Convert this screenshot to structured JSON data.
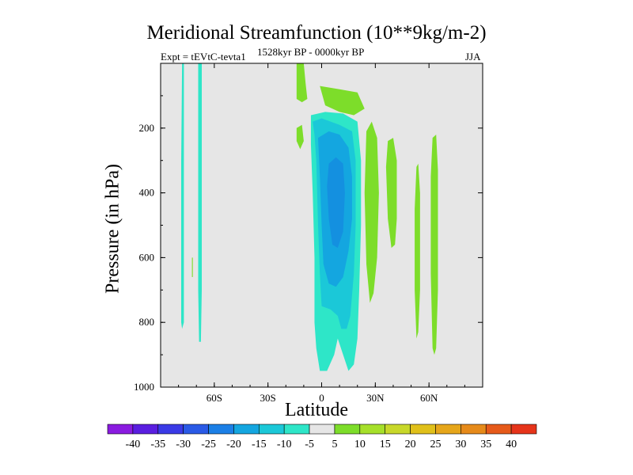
{
  "title": "Meridional Streamfunction (10**9kg/m-2)",
  "subtitle": "1528kyr BP - 0000kyr BP",
  "expt_label": "Expt = tEVtC-tevta1",
  "season": "JJA",
  "colors": {
    "background": "#e6e6e6",
    "neg5": "#2ee6c8",
    "neg10": "#1bc8d8",
    "neg15": "#14a6e0",
    "neg20": "#1490e0",
    "pos5": "#7ddd2a"
  },
  "chart_data": {
    "type": "contour",
    "title": "Meridional Streamfunction (10**9kg/m-2)",
    "xlabel": "Latitude",
    "ylabel": "Pressure (in hPa)",
    "xlim": [
      -90,
      90
    ],
    "ylim": [
      1000,
      0
    ],
    "xticks": [
      {
        "value": -60,
        "label": "60S"
      },
      {
        "value": -30,
        "label": "30S"
      },
      {
        "value": 0,
        "label": "0"
      },
      {
        "value": 30,
        "label": "30N"
      },
      {
        "value": 60,
        "label": "60N"
      }
    ],
    "yticks": [
      {
        "value": 200,
        "label": "200"
      },
      {
        "value": 400,
        "label": "400"
      },
      {
        "value": 600,
        "label": "600"
      },
      {
        "value": 800,
        "label": "800"
      },
      {
        "value": 1000,
        "label": "1000"
      }
    ],
    "colorbar": {
      "levels": [
        -40,
        -35,
        -30,
        -25,
        -20,
        -15,
        -10,
        -5,
        5,
        10,
        15,
        20,
        25,
        30,
        35,
        40
      ],
      "colors": [
        "#8a1be0",
        "#5a1ee0",
        "#3a3ae6",
        "#2a5ae6",
        "#1b7fe6",
        "#14a6e0",
        "#1bc8d8",
        "#2ee6c8",
        "#e6e6e6",
        "#7ddd2a",
        "#a6e02a",
        "#c8d82a",
        "#e0c01a",
        "#e6a61a",
        "#e68a1a",
        "#e65a1a",
        "#e6341a"
      ]
    },
    "regions": [
      {
        "name": "band-70S-a",
        "level": "neg5",
        "points": [
          [
            -78,
            0
          ],
          [
            -77,
            0
          ],
          [
            -77,
            800
          ],
          [
            -78,
            820
          ],
          [
            -78.5,
            800
          ],
          [
            -78.5,
            300
          ]
        ]
      },
      {
        "name": "band-70S-b",
        "level": "neg5",
        "points": [
          [
            -69,
            0
          ],
          [
            -67,
            0
          ],
          [
            -67,
            700
          ],
          [
            -67.5,
            860
          ],
          [
            -68.5,
            860
          ],
          [
            -69,
            700
          ]
        ]
      },
      {
        "name": "spot-72S",
        "level": "pos5",
        "points": [
          [
            -72.5,
            600
          ],
          [
            -72,
            600
          ],
          [
            -72,
            660
          ],
          [
            -72.5,
            660
          ]
        ]
      },
      {
        "name": "upper-15S",
        "level": "pos5",
        "points": [
          [
            -14,
            0
          ],
          [
            -10,
            0
          ],
          [
            -9,
            60
          ],
          [
            -8,
            110
          ],
          [
            -11,
            120
          ],
          [
            -14,
            110
          ],
          [
            -14,
            60
          ]
        ]
      },
      {
        "name": "upper-7N",
        "level": "pos5",
        "points": [
          [
            -1,
            70
          ],
          [
            10,
            80
          ],
          [
            20,
            90
          ],
          [
            24,
            140
          ],
          [
            18,
            160
          ],
          [
            10,
            150
          ],
          [
            2,
            130
          ]
        ]
      },
      {
        "name": "upper-left-blob",
        "level": "pos5",
        "points": [
          [
            -14,
            200
          ],
          [
            -11,
            190
          ],
          [
            -10,
            240
          ],
          [
            -12,
            265
          ],
          [
            -14,
            240
          ]
        ]
      },
      {
        "name": "cell-outer",
        "level": "neg5",
        "points": [
          [
            -6,
            160
          ],
          [
            2,
            150
          ],
          [
            12,
            155
          ],
          [
            20,
            180
          ],
          [
            22,
            300
          ],
          [
            22,
            500
          ],
          [
            21,
            700
          ],
          [
            20,
            850
          ],
          [
            18,
            930
          ],
          [
            15,
            950
          ],
          [
            12,
            900
          ],
          [
            9,
            850
          ],
          [
            7,
            900
          ],
          [
            3,
            950
          ],
          [
            -1,
            950
          ],
          [
            -3,
            880
          ],
          [
            -4,
            800
          ],
          [
            -4,
            600
          ],
          [
            -5,
            400
          ],
          [
            -6,
            250
          ]
        ]
      },
      {
        "name": "cell-10",
        "level": "neg10",
        "points": [
          [
            -5,
            180
          ],
          [
            0,
            170
          ],
          [
            10,
            190
          ],
          [
            17,
            210
          ],
          [
            19,
            300
          ],
          [
            19,
            500
          ],
          [
            18,
            650
          ],
          [
            16,
            780
          ],
          [
            14,
            820
          ],
          [
            11,
            820
          ],
          [
            9,
            780
          ],
          [
            5,
            760
          ],
          [
            0,
            750
          ],
          [
            -1,
            650
          ],
          [
            -2,
            500
          ],
          [
            -3,
            300
          ],
          [
            -4,
            220
          ]
        ]
      },
      {
        "name": "cell-15",
        "level": "neg15",
        "points": [
          [
            -2,
            230
          ],
          [
            4,
            210
          ],
          [
            10,
            220
          ],
          [
            15,
            260
          ],
          [
            17,
            350
          ],
          [
            17,
            480
          ],
          [
            15,
            580
          ],
          [
            12,
            660
          ],
          [
            8,
            690
          ],
          [
            4,
            680
          ],
          [
            1,
            620
          ],
          [
            0,
            500
          ],
          [
            -1,
            350
          ]
        ]
      },
      {
        "name": "cell-20",
        "level": "neg20",
        "points": [
          [
            4,
            310
          ],
          [
            8,
            290
          ],
          [
            12,
            310
          ],
          [
            13,
            400
          ],
          [
            12,
            520
          ],
          [
            9,
            570
          ],
          [
            6,
            560
          ],
          [
            4,
            480
          ],
          [
            3,
            380
          ]
        ]
      },
      {
        "name": "band-30N",
        "level": "pos5",
        "points": [
          [
            25,
            210
          ],
          [
            28,
            180
          ],
          [
            31,
            230
          ],
          [
            32,
            400
          ],
          [
            31,
            600
          ],
          [
            29,
            710
          ],
          [
            27,
            740
          ],
          [
            25,
            620
          ],
          [
            24,
            400
          ]
        ]
      },
      {
        "name": "band-38N",
        "level": "pos5",
        "points": [
          [
            37,
            240
          ],
          [
            40,
            230
          ],
          [
            42,
            300
          ],
          [
            42,
            480
          ],
          [
            41,
            560
          ],
          [
            39,
            570
          ],
          [
            37,
            480
          ],
          [
            36,
            320
          ]
        ]
      },
      {
        "name": "band-55N",
        "level": "pos5",
        "points": [
          [
            53,
            320
          ],
          [
            54,
            310
          ],
          [
            55,
            400
          ],
          [
            55,
            700
          ],
          [
            54,
            830
          ],
          [
            53,
            850
          ],
          [
            52,
            700
          ],
          [
            52,
            450
          ]
        ]
      },
      {
        "name": "band-62N",
        "level": "pos5",
        "points": [
          [
            62,
            230
          ],
          [
            64,
            220
          ],
          [
            65,
            330
          ],
          [
            65,
            700
          ],
          [
            64,
            880
          ],
          [
            63,
            900
          ],
          [
            62,
            880
          ],
          [
            61,
            650
          ],
          [
            61,
            350
          ]
        ]
      }
    ]
  },
  "colorbar_labels": [
    "-40",
    "-35",
    "-30",
    "-25",
    "-20",
    "-15",
    "-10",
    "-5",
    "5",
    "10",
    "15",
    "20",
    "25",
    "30",
    "35",
    "40"
  ]
}
